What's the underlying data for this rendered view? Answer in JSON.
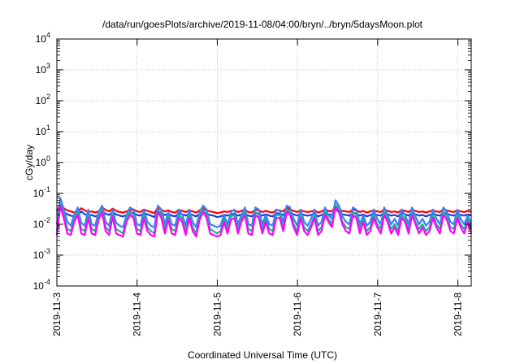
{
  "chart_data": {
    "type": "line",
    "title": "/data/run/goesPlots/archive/2019-11-08/04:00/bryn/../bryn/5daysMoon.plot",
    "xlabel": "Coordinated Universal Time (UTC)",
    "ylabel": "cGy/day",
    "yscale": "log",
    "ylim": [
      0.0001,
      10000
    ],
    "y_ticks": [
      {
        "value": 0.0001,
        "base": "10",
        "exp": "-4"
      },
      {
        "value": 0.001,
        "base": "10",
        "exp": "-3"
      },
      {
        "value": 0.01,
        "base": "10",
        "exp": "-2"
      },
      {
        "value": 0.1,
        "base": "10",
        "exp": "-1"
      },
      {
        "value": 1,
        "base": "10",
        "exp": "0"
      },
      {
        "value": 10,
        "base": "10",
        "exp": "1"
      },
      {
        "value": 100,
        "base": "10",
        "exp": "2"
      },
      {
        "value": 1000,
        "base": "10",
        "exp": "3"
      },
      {
        "value": 10000,
        "base": "10",
        "exp": "4"
      }
    ],
    "xlim": [
      "2019-11-03",
      "2019-11-08T04:00"
    ],
    "x_ticks": [
      "2019-11-3",
      "2019-11-4",
      "2019-11-5",
      "2019-11-6",
      "2019-11-7",
      "2019-11-8"
    ],
    "grid": true,
    "series": [
      {
        "color": "#ff0000",
        "baseline": 0.025,
        "values": [
          0.026,
          0.045,
          0.033,
          0.028,
          0.026,
          0.024,
          0.026,
          0.033,
          0.028,
          0.025,
          0.026,
          0.024,
          0.026,
          0.035,
          0.029,
          0.026,
          0.032,
          0.027,
          0.025,
          0.024,
          0.026,
          0.028,
          0.03,
          0.026,
          0.025,
          0.03,
          0.027,
          0.025,
          0.023,
          0.035,
          0.029,
          0.026,
          0.028,
          0.025,
          0.024,
          0.029,
          0.027,
          0.025,
          0.028,
          0.026,
          0.024,
          0.028,
          0.033,
          0.028,
          0.026,
          0.025,
          0.023,
          0.024,
          0.026,
          0.025,
          0.027,
          0.028,
          0.025,
          0.027,
          0.029,
          0.025,
          0.024,
          0.03,
          0.028,
          0.025,
          0.027,
          0.025,
          0.024,
          0.029,
          0.028,
          0.026,
          0.035,
          0.03,
          0.027,
          0.025,
          0.028,
          0.026,
          0.025,
          0.026,
          0.028,
          0.024,
          0.026,
          0.03,
          0.027,
          0.026,
          0.038,
          0.031,
          0.027,
          0.026,
          0.025,
          0.03,
          0.028,
          0.025,
          0.027,
          0.024,
          0.026,
          0.028,
          0.026,
          0.025,
          0.03,
          0.027,
          0.025,
          0.026,
          0.024,
          0.029,
          0.027,
          0.025,
          0.03,
          0.027,
          0.025,
          0.026,
          0.024,
          0.026,
          0.028,
          0.026,
          0.025,
          0.03,
          0.028,
          0.026,
          0.025,
          0.028,
          0.026,
          0.025,
          0.027,
          0.025
        ]
      },
      {
        "color": "#1f3fd6",
        "baseline": 0.018,
        "values": [
          0.02,
          0.03,
          0.025,
          0.021,
          0.019,
          0.018,
          0.02,
          0.026,
          0.021,
          0.019,
          0.02,
          0.018,
          0.02,
          0.027,
          0.022,
          0.02,
          0.025,
          0.021,
          0.019,
          0.018,
          0.02,
          0.022,
          0.024,
          0.02,
          0.019,
          0.023,
          0.021,
          0.019,
          0.017,
          0.028,
          0.023,
          0.02,
          0.022,
          0.019,
          0.018,
          0.023,
          0.021,
          0.019,
          0.022,
          0.02,
          0.018,
          0.022,
          0.026,
          0.022,
          0.02,
          0.019,
          0.017,
          0.018,
          0.02,
          0.019,
          0.021,
          0.022,
          0.019,
          0.021,
          0.023,
          0.019,
          0.018,
          0.024,
          0.022,
          0.019,
          0.021,
          0.019,
          0.018,
          0.023,
          0.022,
          0.02,
          0.028,
          0.024,
          0.021,
          0.019,
          0.022,
          0.02,
          0.019,
          0.02,
          0.022,
          0.018,
          0.02,
          0.024,
          0.021,
          0.02,
          0.03,
          0.025,
          0.021,
          0.02,
          0.019,
          0.024,
          0.022,
          0.019,
          0.021,
          0.018,
          0.02,
          0.022,
          0.02,
          0.019,
          0.024,
          0.021,
          0.019,
          0.02,
          0.018,
          0.023,
          0.021,
          0.019,
          0.024,
          0.021,
          0.019,
          0.02,
          0.018,
          0.02,
          0.022,
          0.02,
          0.019,
          0.024,
          0.022,
          0.02,
          0.019,
          0.022,
          0.02,
          0.019,
          0.021,
          0.019
        ]
      },
      {
        "color": "#3a7fff",
        "baseline": 0.009,
        "values": [
          0.01,
          0.07,
          0.03,
          0.012,
          0.009,
          0.02,
          0.035,
          0.011,
          0.009,
          0.03,
          0.01,
          0.009,
          0.025,
          0.04,
          0.012,
          0.009,
          0.03,
          0.011,
          0.009,
          0.008,
          0.02,
          0.035,
          0.03,
          0.01,
          0.009,
          0.03,
          0.012,
          0.009,
          0.008,
          0.04,
          0.03,
          0.01,
          0.025,
          0.01,
          0.009,
          0.03,
          0.02,
          0.009,
          0.03,
          0.012,
          0.008,
          0.025,
          0.04,
          0.03,
          0.01,
          0.009,
          0.008,
          0.009,
          0.02,
          0.01,
          0.025,
          0.03,
          0.01,
          0.02,
          0.035,
          0.01,
          0.009,
          0.035,
          0.03,
          0.01,
          0.02,
          0.01,
          0.009,
          0.03,
          0.028,
          0.012,
          0.04,
          0.035,
          0.015,
          0.009,
          0.03,
          0.012,
          0.009,
          0.015,
          0.03,
          0.009,
          0.012,
          0.035,
          0.02,
          0.015,
          0.06,
          0.04,
          0.018,
          0.012,
          0.01,
          0.035,
          0.03,
          0.01,
          0.02,
          0.009,
          0.012,
          0.03,
          0.015,
          0.01,
          0.035,
          0.02,
          0.01,
          0.015,
          0.009,
          0.03,
          0.02,
          0.01,
          0.035,
          0.018,
          0.01,
          0.015,
          0.009,
          0.012,
          0.03,
          0.015,
          0.01,
          0.035,
          0.025,
          0.012,
          0.01,
          0.03,
          0.015,
          0.01,
          0.02,
          0.01
        ]
      },
      {
        "color": "#20b090",
        "baseline": 0.006,
        "values": [
          0.006,
          0.05,
          0.02,
          0.007,
          0.006,
          0.015,
          0.025,
          0.007,
          0.006,
          0.02,
          0.007,
          0.006,
          0.018,
          0.03,
          0.008,
          0.006,
          0.022,
          0.007,
          0.006,
          0.005,
          0.015,
          0.025,
          0.02,
          0.007,
          0.006,
          0.02,
          0.008,
          0.006,
          0.005,
          0.03,
          0.02,
          0.007,
          0.018,
          0.007,
          0.006,
          0.02,
          0.015,
          0.006,
          0.02,
          0.008,
          0.005,
          0.018,
          0.03,
          0.02,
          0.007,
          0.006,
          0.005,
          0.006,
          0.015,
          0.007,
          0.018,
          0.02,
          0.007,
          0.015,
          0.025,
          0.007,
          0.006,
          0.025,
          0.02,
          0.007,
          0.015,
          0.007,
          0.006,
          0.02,
          0.02,
          0.008,
          0.03,
          0.025,
          0.01,
          0.006,
          0.02,
          0.008,
          0.006,
          0.01,
          0.02,
          0.006,
          0.008,
          0.025,
          0.015,
          0.01,
          0.045,
          0.03,
          0.012,
          0.008,
          0.007,
          0.025,
          0.02,
          0.007,
          0.015,
          0.006,
          0.008,
          0.02,
          0.01,
          0.007,
          0.025,
          0.015,
          0.007,
          0.01,
          0.006,
          0.02,
          0.015,
          0.007,
          0.025,
          0.012,
          0.007,
          0.01,
          0.006,
          0.008,
          0.02,
          0.01,
          0.007,
          0.025,
          0.018,
          0.008,
          0.007,
          0.02,
          0.01,
          0.007,
          0.015,
          0.007
        ]
      },
      {
        "color": "#ff00ff",
        "baseline": 0.0045,
        "values": [
          0.0045,
          0.04,
          0.015,
          0.005,
          0.0045,
          0.012,
          0.02,
          0.005,
          0.0045,
          0.016,
          0.005,
          0.0045,
          0.014,
          0.025,
          0.006,
          0.0045,
          0.018,
          0.005,
          0.0045,
          0.004,
          0.012,
          0.02,
          0.016,
          0.005,
          0.0045,
          0.016,
          0.006,
          0.0045,
          0.004,
          0.025,
          0.016,
          0.005,
          0.014,
          0.005,
          0.0045,
          0.016,
          0.012,
          0.0045,
          0.016,
          0.006,
          0.004,
          0.014,
          0.025,
          0.016,
          0.005,
          0.0045,
          0.004,
          0.0045,
          0.012,
          0.005,
          0.014,
          0.016,
          0.005,
          0.012,
          0.02,
          0.005,
          0.0045,
          0.02,
          0.016,
          0.005,
          0.012,
          0.005,
          0.0045,
          0.016,
          0.016,
          0.006,
          0.025,
          0.02,
          0.008,
          0.0045,
          0.016,
          0.006,
          0.0045,
          0.008,
          0.016,
          0.0045,
          0.006,
          0.02,
          0.012,
          0.008,
          0.035,
          0.025,
          0.01,
          0.006,
          0.005,
          0.02,
          0.016,
          0.005,
          0.012,
          0.0045,
          0.006,
          0.016,
          0.008,
          0.005,
          0.02,
          0.012,
          0.005,
          0.008,
          0.0045,
          0.016,
          0.012,
          0.005,
          0.02,
          0.01,
          0.005,
          0.008,
          0.0045,
          0.006,
          0.016,
          0.008,
          0.005,
          0.02,
          0.014,
          0.006,
          0.005,
          0.016,
          0.008,
          0.005,
          0.012,
          0.005
        ]
      }
    ]
  }
}
